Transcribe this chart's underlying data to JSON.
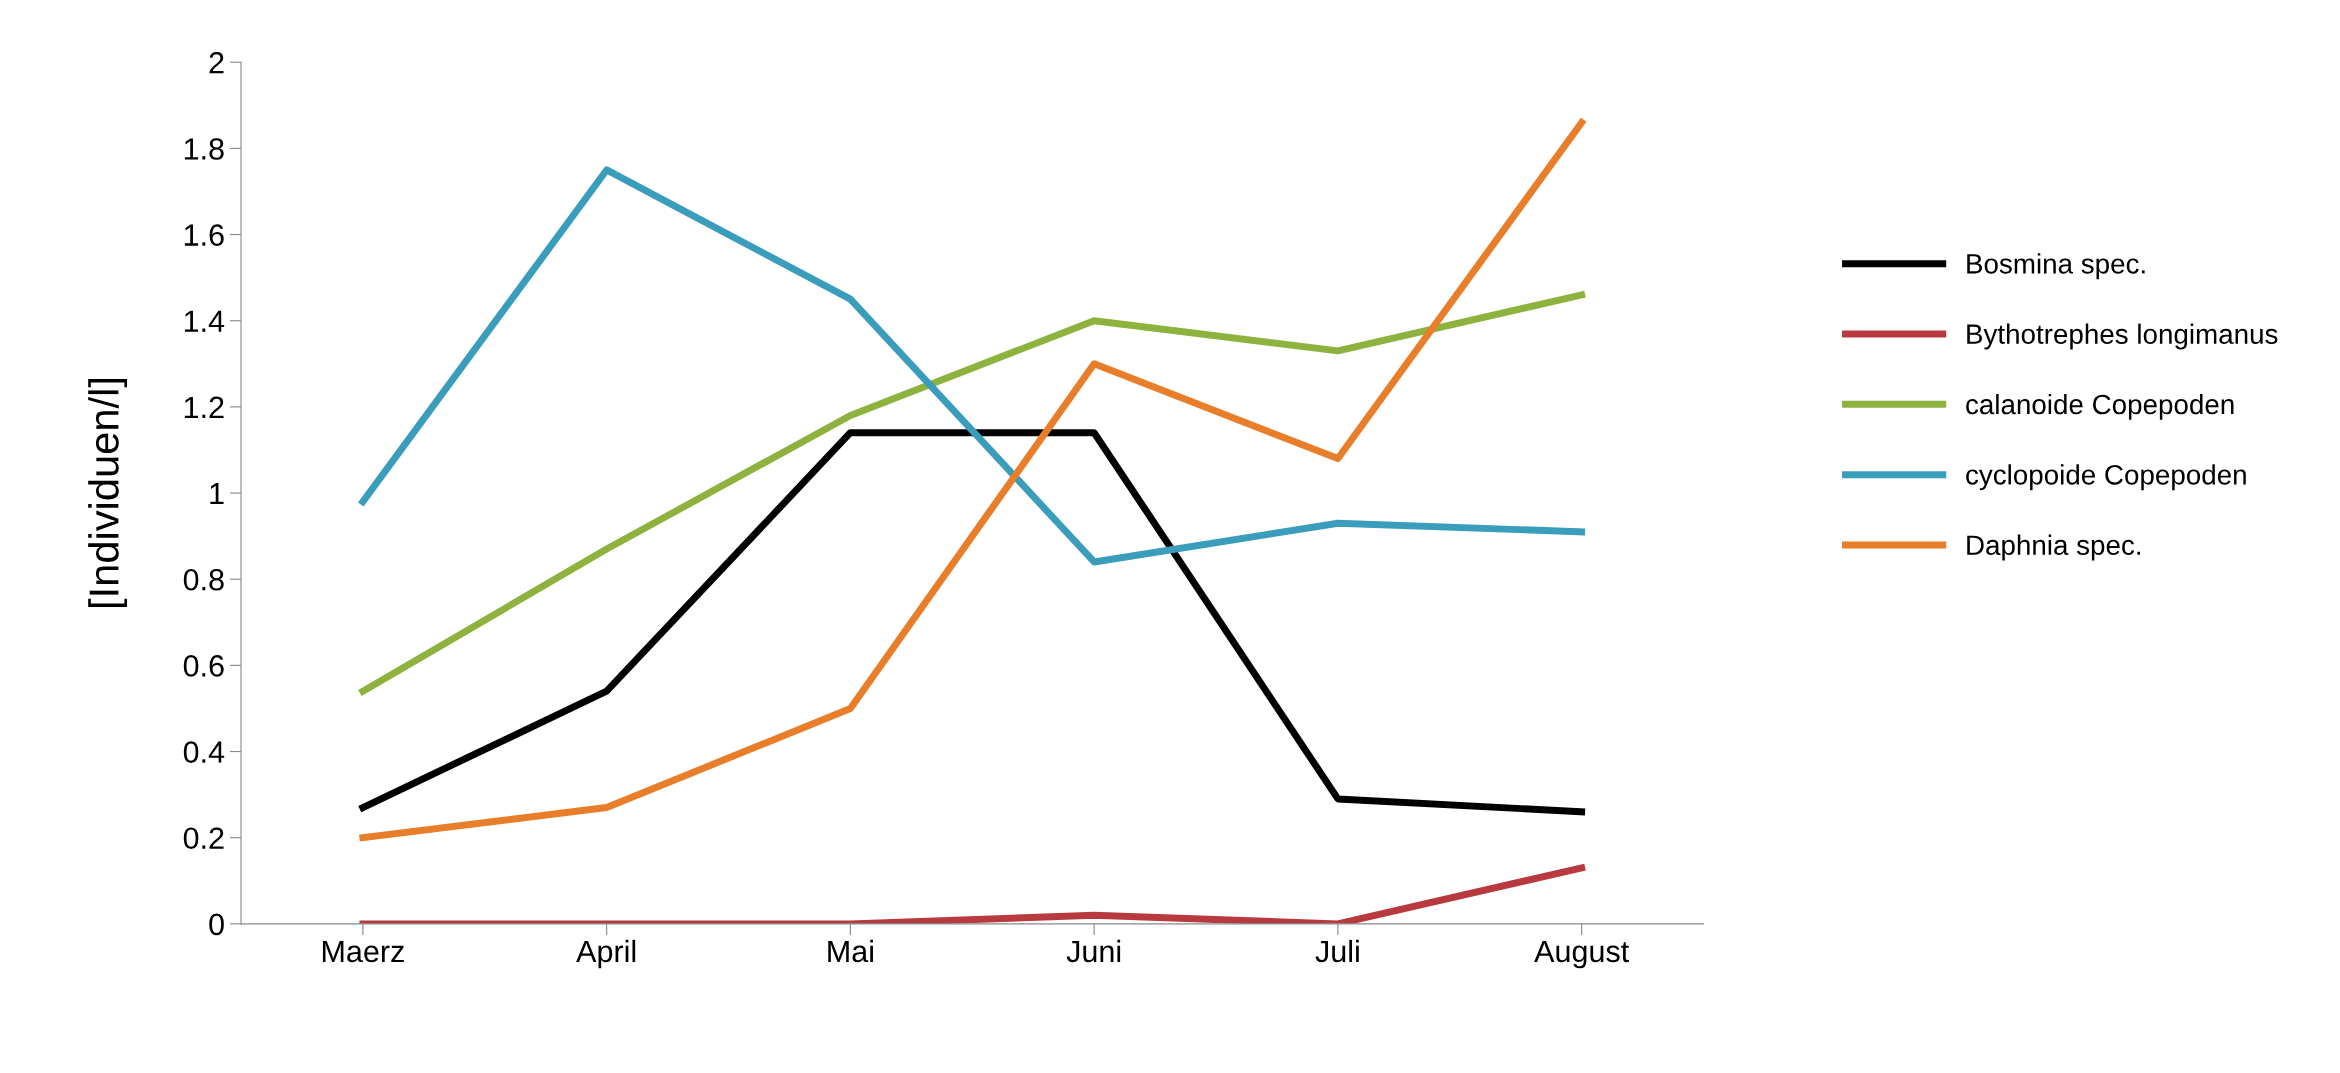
{
  "chart_data": {
    "type": "line",
    "ylabel": "[Individuen/l]",
    "categories": [
      "Maerz",
      "April",
      "Mai",
      "Juni",
      "Juli",
      "August"
    ],
    "series": [
      {
        "name": "Bosmina spec.",
        "color": "#000000",
        "values": [
          0.27,
          0.54,
          1.14,
          1.14,
          0.29,
          0.26
        ]
      },
      {
        "name": "Bythotrephes longimanus",
        "color": "#b83a3f",
        "values": [
          0,
          0,
          0,
          0.02,
          0,
          0.13
        ]
      },
      {
        "name": "calanoide Copepoden",
        "color": "#8db33e",
        "values": [
          0.54,
          0.87,
          1.18,
          1.4,
          1.33,
          1.46
        ]
      },
      {
        "name": "cyclopoide Copepoden",
        "color": "#3a9dbc",
        "values": [
          0.98,
          1.75,
          1.45,
          0.84,
          0.93,
          0.91
        ]
      },
      {
        "name": "Daphnia spec.",
        "color": "#e87d2a",
        "values": [
          0.2,
          0.27,
          0.5,
          1.3,
          1.08,
          1.86
        ]
      }
    ],
    "ylim": [
      0,
      2
    ],
    "yticks": [
      0,
      {
        "value": 0.2,
        "label": "0.2"
      },
      {
        "value": 0.4,
        "label": "0.4"
      },
      {
        "value": 0.6,
        "label": "0.6"
      },
      {
        "value": 0.8,
        "label": "0.8"
      },
      1,
      {
        "value": 1.2,
        "label": "1.2"
      },
      {
        "value": 1.4,
        "label": "1.4"
      },
      {
        "value": 1.6,
        "label": "1.6"
      },
      {
        "value": 1.8,
        "label": "1.8"
      },
      2
    ],
    "grid": false,
    "legend": "right",
    "marker": "none",
    "line_style": "solid"
  }
}
